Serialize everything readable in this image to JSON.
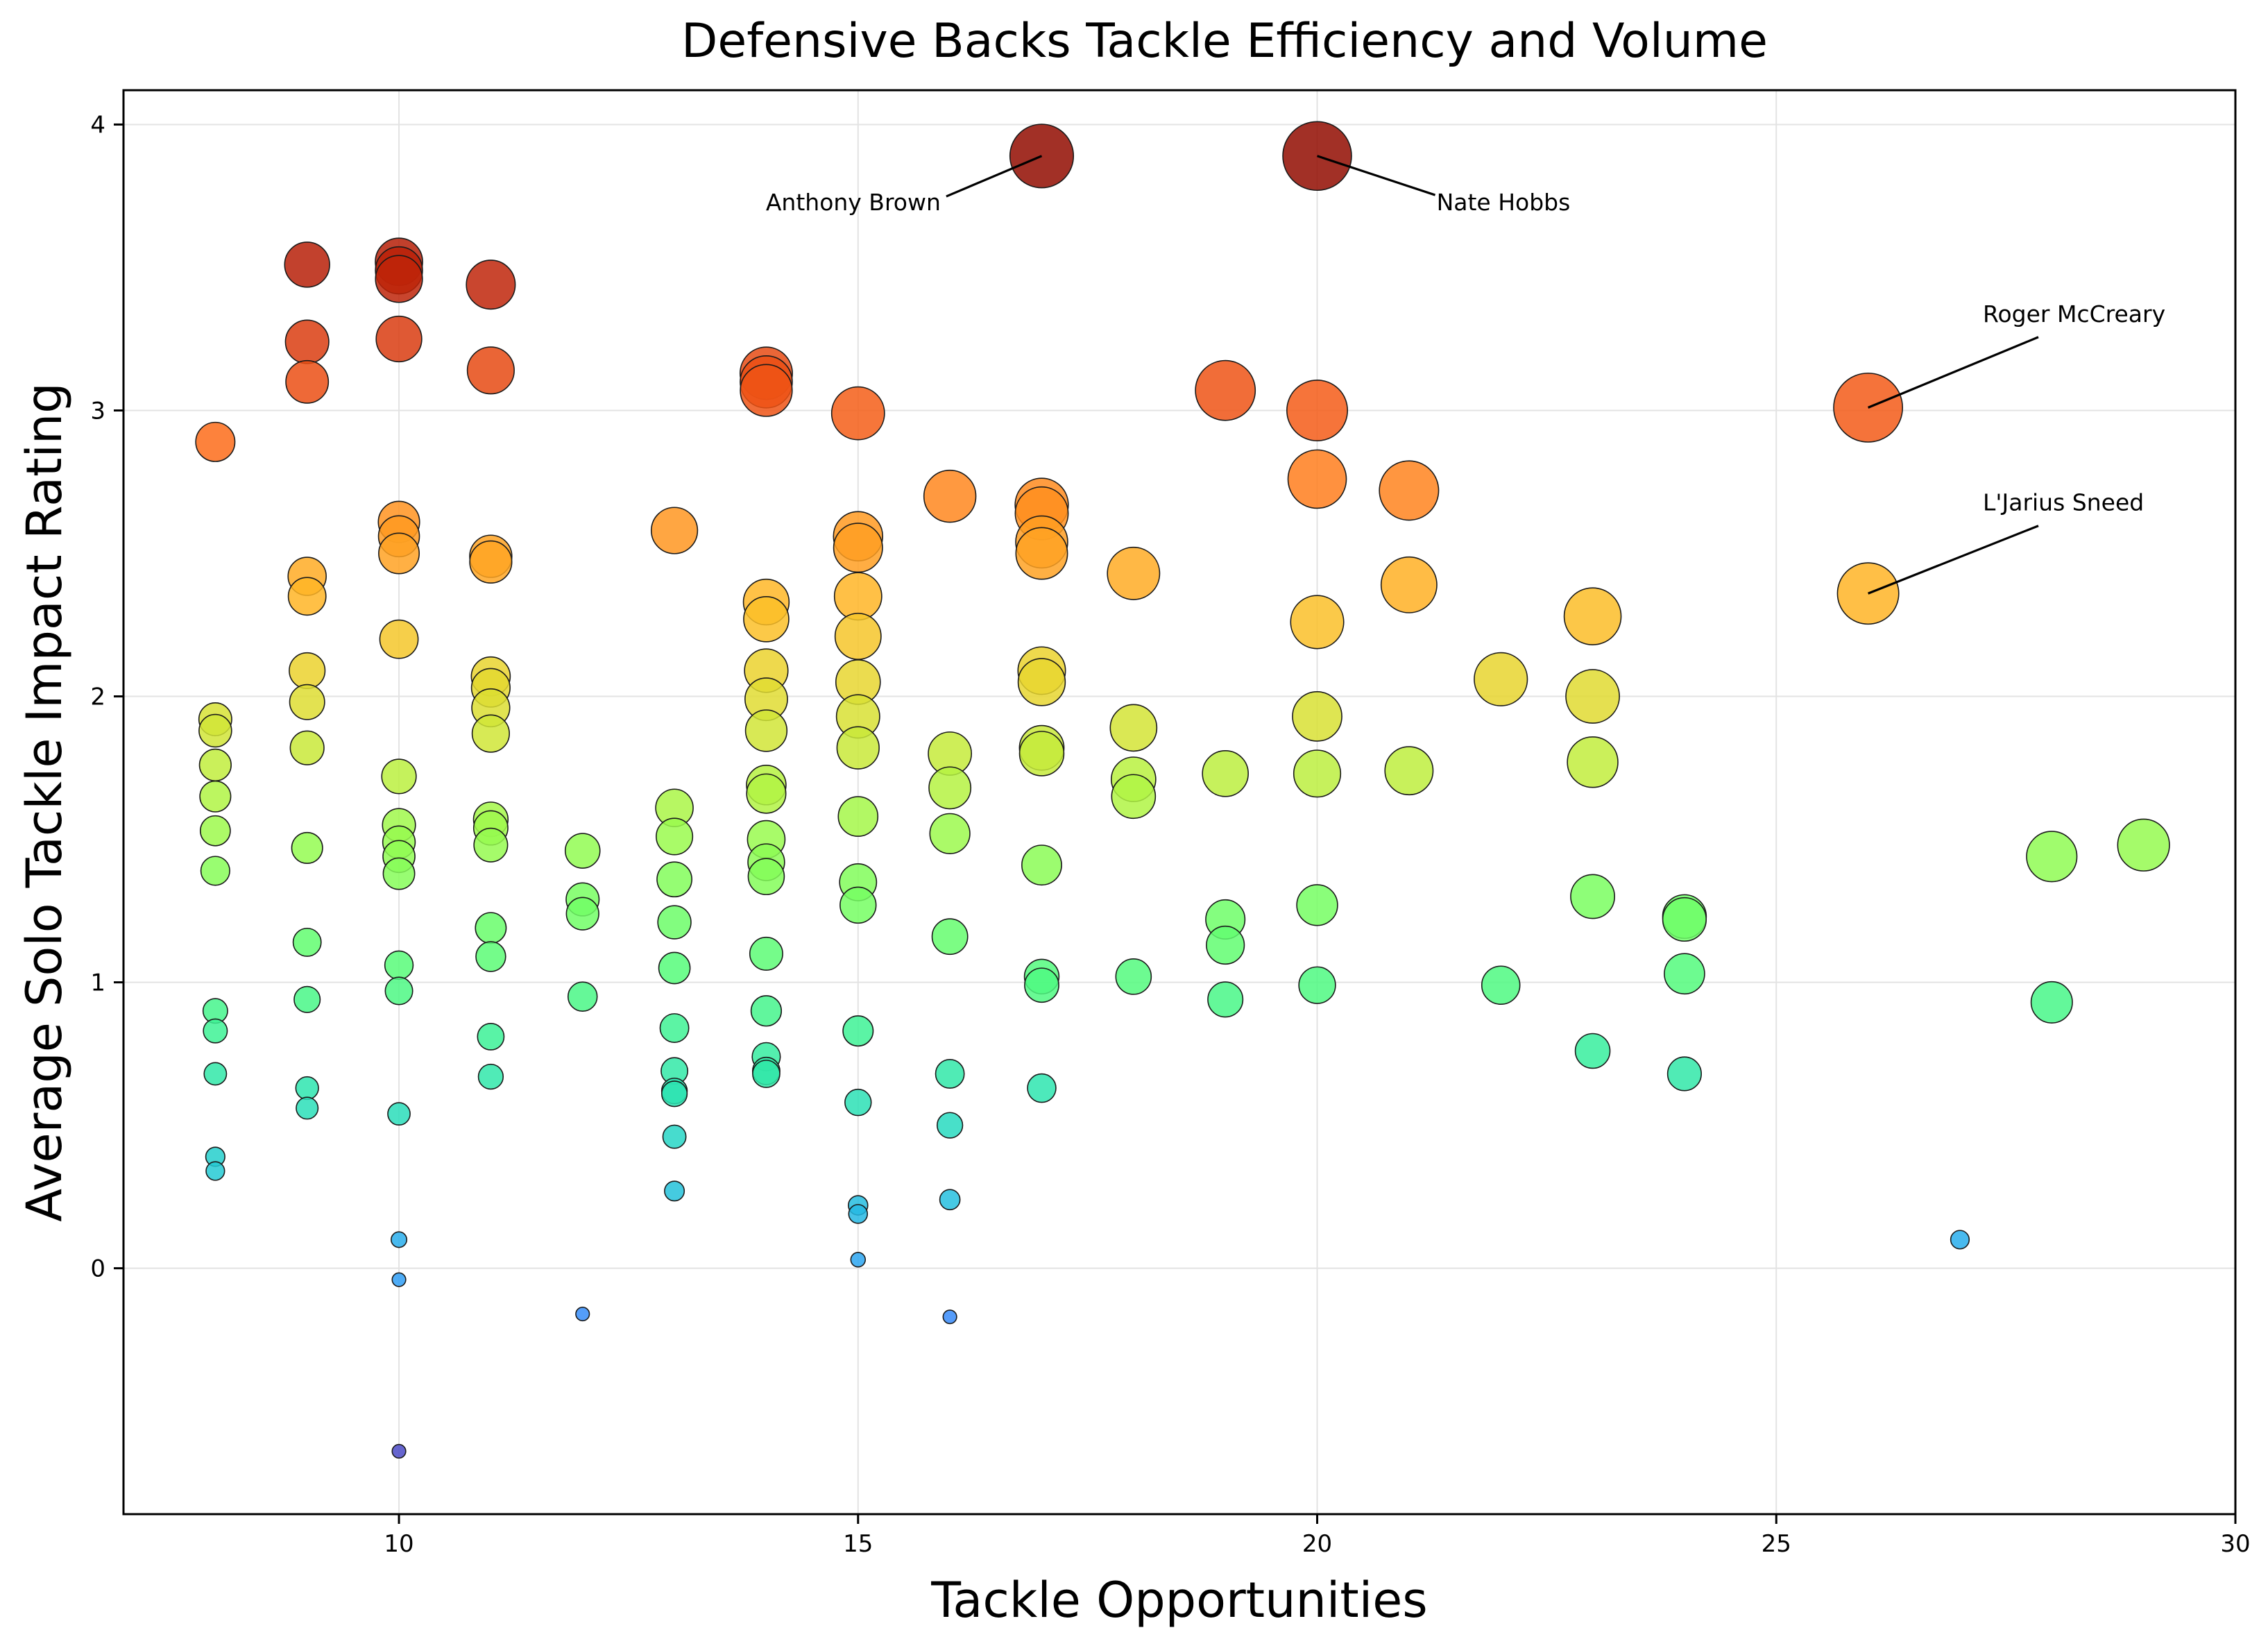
{
  "chart_data": {
    "type": "scatter",
    "title": "Defensive Backs Tackle Efficiency and Volume",
    "xlabel": "Tackle Opportunities",
    "ylabel": "Average Solo Tackle Impact Rating",
    "xlim": [
      7,
      30
    ],
    "ylim": [
      -0.86,
      4.12
    ],
    "xticks": [
      10,
      15,
      20,
      25,
      30
    ],
    "yticks": [
      0,
      1,
      2,
      3,
      4
    ],
    "grid": true,
    "size_encoding": "bubble area grows with the value of x times y",
    "color_encoding": "turbo colormap keyed to y value (blue low, dark red high)",
    "points": [
      {
        "x": 8,
        "y": 2.89
      },
      {
        "x": 8,
        "y": 1.92
      },
      {
        "x": 8,
        "y": 1.88
      },
      {
        "x": 8,
        "y": 1.76
      },
      {
        "x": 8,
        "y": 1.65
      },
      {
        "x": 8,
        "y": 1.53
      },
      {
        "x": 8,
        "y": 1.39
      },
      {
        "x": 8,
        "y": 0.9
      },
      {
        "x": 8,
        "y": 0.83
      },
      {
        "x": 8,
        "y": 0.68
      },
      {
        "x": 8,
        "y": 0.39
      },
      {
        "x": 8,
        "y": 0.34
      },
      {
        "x": 9,
        "y": 3.51
      },
      {
        "x": 9,
        "y": 3.24
      },
      {
        "x": 9,
        "y": 3.1
      },
      {
        "x": 9,
        "y": 2.42
      },
      {
        "x": 9,
        "y": 2.35
      },
      {
        "x": 9,
        "y": 2.09
      },
      {
        "x": 9,
        "y": 1.98
      },
      {
        "x": 9,
        "y": 1.82
      },
      {
        "x": 9,
        "y": 1.47
      },
      {
        "x": 9,
        "y": 1.14
      },
      {
        "x": 9,
        "y": 0.94
      },
      {
        "x": 9,
        "y": 0.63
      },
      {
        "x": 9,
        "y": 0.56
      },
      {
        "x": 10,
        "y": 3.52
      },
      {
        "x": 10,
        "y": 3.49
      },
      {
        "x": 10,
        "y": 3.46
      },
      {
        "x": 10,
        "y": 3.25
      },
      {
        "x": 10,
        "y": 2.61
      },
      {
        "x": 10,
        "y": 2.56
      },
      {
        "x": 10,
        "y": 2.5
      },
      {
        "x": 10,
        "y": 2.2
      },
      {
        "x": 10,
        "y": 1.72
      },
      {
        "x": 10,
        "y": 1.55
      },
      {
        "x": 10,
        "y": 1.49
      },
      {
        "x": 10,
        "y": 1.44
      },
      {
        "x": 10,
        "y": 1.38
      },
      {
        "x": 10,
        "y": 1.06
      },
      {
        "x": 10,
        "y": 0.97
      },
      {
        "x": 10,
        "y": 0.54
      },
      {
        "x": 10,
        "y": 0.1
      },
      {
        "x": 10,
        "y": -0.04
      },
      {
        "x": 10,
        "y": -0.64
      },
      {
        "x": 11,
        "y": 3.44
      },
      {
        "x": 11,
        "y": 3.14
      },
      {
        "x": 11,
        "y": 2.49
      },
      {
        "x": 11,
        "y": 2.47
      },
      {
        "x": 11,
        "y": 2.07
      },
      {
        "x": 11,
        "y": 2.03
      },
      {
        "x": 11,
        "y": 1.96
      },
      {
        "x": 11,
        "y": 1.87
      },
      {
        "x": 11,
        "y": 1.57
      },
      {
        "x": 11,
        "y": 1.54
      },
      {
        "x": 11,
        "y": 1.48
      },
      {
        "x": 11,
        "y": 1.19
      },
      {
        "x": 11,
        "y": 1.09
      },
      {
        "x": 11,
        "y": 0.81
      },
      {
        "x": 11,
        "y": 0.67
      },
      {
        "x": 12,
        "y": 1.46
      },
      {
        "x": 12,
        "y": 1.29
      },
      {
        "x": 12,
        "y": 1.24
      },
      {
        "x": 12,
        "y": 0.95
      },
      {
        "x": 12,
        "y": -0.16
      },
      {
        "x": 13,
        "y": 2.58
      },
      {
        "x": 13,
        "y": 1.61
      },
      {
        "x": 13,
        "y": 1.51
      },
      {
        "x": 13,
        "y": 1.36
      },
      {
        "x": 13,
        "y": 1.21
      },
      {
        "x": 13,
        "y": 1.05
      },
      {
        "x": 13,
        "y": 0.84
      },
      {
        "x": 13,
        "y": 0.69
      },
      {
        "x": 13,
        "y": 0.62
      },
      {
        "x": 13,
        "y": 0.61
      },
      {
        "x": 13,
        "y": 0.46
      },
      {
        "x": 13,
        "y": 0.27
      },
      {
        "x": 14,
        "y": 3.13
      },
      {
        "x": 14,
        "y": 3.1
      },
      {
        "x": 14,
        "y": 3.07
      },
      {
        "x": 14,
        "y": 2.33
      },
      {
        "x": 14,
        "y": 2.27
      },
      {
        "x": 14,
        "y": 2.09
      },
      {
        "x": 14,
        "y": 1.99
      },
      {
        "x": 14,
        "y": 1.88
      },
      {
        "x": 14,
        "y": 1.69
      },
      {
        "x": 14,
        "y": 1.66
      },
      {
        "x": 14,
        "y": 1.5
      },
      {
        "x": 14,
        "y": 1.42
      },
      {
        "x": 14,
        "y": 1.37
      },
      {
        "x": 14,
        "y": 1.1
      },
      {
        "x": 14,
        "y": 0.9
      },
      {
        "x": 14,
        "y": 0.74
      },
      {
        "x": 14,
        "y": 0.69
      },
      {
        "x": 14,
        "y": 0.68
      },
      {
        "x": 15,
        "y": 2.99
      },
      {
        "x": 15,
        "y": 2.56
      },
      {
        "x": 15,
        "y": 2.52
      },
      {
        "x": 15,
        "y": 2.35
      },
      {
        "x": 15,
        "y": 2.21
      },
      {
        "x": 15,
        "y": 2.05
      },
      {
        "x": 15,
        "y": 1.93
      },
      {
        "x": 15,
        "y": 1.82
      },
      {
        "x": 15,
        "y": 1.58
      },
      {
        "x": 15,
        "y": 1.35
      },
      {
        "x": 15,
        "y": 1.27
      },
      {
        "x": 15,
        "y": 0.83
      },
      {
        "x": 15,
        "y": 0.58
      },
      {
        "x": 15,
        "y": 0.22
      },
      {
        "x": 15,
        "y": 0.19
      },
      {
        "x": 15,
        "y": 0.03
      },
      {
        "x": 16,
        "y": 2.7
      },
      {
        "x": 16,
        "y": 1.8
      },
      {
        "x": 16,
        "y": 1.68
      },
      {
        "x": 16,
        "y": 1.52
      },
      {
        "x": 16,
        "y": 1.16
      },
      {
        "x": 16,
        "y": 0.68
      },
      {
        "x": 16,
        "y": 0.5
      },
      {
        "x": 16,
        "y": 0.24
      },
      {
        "x": 16,
        "y": -0.17
      },
      {
        "x": 17,
        "y": 3.89
      },
      {
        "x": 17,
        "y": 2.67
      },
      {
        "x": 17,
        "y": 2.64
      },
      {
        "x": 17,
        "y": 2.5
      },
      {
        "x": 17,
        "y": 2.54
      },
      {
        "x": 17,
        "y": 2.09
      },
      {
        "x": 17,
        "y": 2.05
      },
      {
        "x": 17,
        "y": 1.82
      },
      {
        "x": 17,
        "y": 1.8
      },
      {
        "x": 17,
        "y": 1.41
      },
      {
        "x": 17,
        "y": 1.02
      },
      {
        "x": 17,
        "y": 0.99
      },
      {
        "x": 17,
        "y": 0.63
      },
      {
        "x": 18,
        "y": 2.43
      },
      {
        "x": 18,
        "y": 1.89
      },
      {
        "x": 18,
        "y": 1.71
      },
      {
        "x": 18,
        "y": 1.65
      },
      {
        "x": 18,
        "y": 1.02
      },
      {
        "x": 19,
        "y": 3.07
      },
      {
        "x": 19,
        "y": 1.73
      },
      {
        "x": 19,
        "y": 1.22
      },
      {
        "x": 19,
        "y": 1.13
      },
      {
        "x": 19,
        "y": 0.94
      },
      {
        "x": 20,
        "y": 3.89
      },
      {
        "x": 20,
        "y": 3.0
      },
      {
        "x": 20,
        "y": 2.76
      },
      {
        "x": 20,
        "y": 2.26
      },
      {
        "x": 20,
        "y": 1.93
      },
      {
        "x": 20,
        "y": 1.73
      },
      {
        "x": 20,
        "y": 1.27
      },
      {
        "x": 20,
        "y": 0.99
      },
      {
        "x": 21,
        "y": 2.72
      },
      {
        "x": 21,
        "y": 2.39
      },
      {
        "x": 21,
        "y": 1.74
      },
      {
        "x": 22,
        "y": 2.06
      },
      {
        "x": 22,
        "y": 0.99
      },
      {
        "x": 23,
        "y": 2.28
      },
      {
        "x": 23,
        "y": 2.0
      },
      {
        "x": 23,
        "y": 1.77
      },
      {
        "x": 23,
        "y": 1.3
      },
      {
        "x": 23,
        "y": 0.76
      },
      {
        "x": 24,
        "y": 1.23
      },
      {
        "x": 24,
        "y": 1.22
      },
      {
        "x": 24,
        "y": 1.03
      },
      {
        "x": 24,
        "y": 0.68
      },
      {
        "x": 26,
        "y": 3.01
      },
      {
        "x": 26,
        "y": 2.36
      },
      {
        "x": 27,
        "y": 0.1
      },
      {
        "x": 28,
        "y": 1.44
      },
      {
        "x": 28,
        "y": 0.93
      },
      {
        "x": 29,
        "y": 1.48
      }
    ],
    "annotations": [
      {
        "text": "Anthony Brown",
        "x": 17,
        "y": 3.89,
        "anchor": "end",
        "text_x": 15.9,
        "text_y": 3.7
      },
      {
        "text": "Nate Hobbs",
        "x": 20,
        "y": 3.89,
        "anchor": "start",
        "text_x": 21.3,
        "text_y": 3.7
      },
      {
        "text": "Roger McCreary",
        "x": 26,
        "y": 3.01,
        "anchor": "start",
        "text_x": 27.25,
        "text_y": 3.31
      },
      {
        "text": "L'Jarius Sneed",
        "x": 26,
        "y": 2.36,
        "anchor": "start",
        "text_x": 27.25,
        "text_y": 2.65
      }
    ]
  }
}
